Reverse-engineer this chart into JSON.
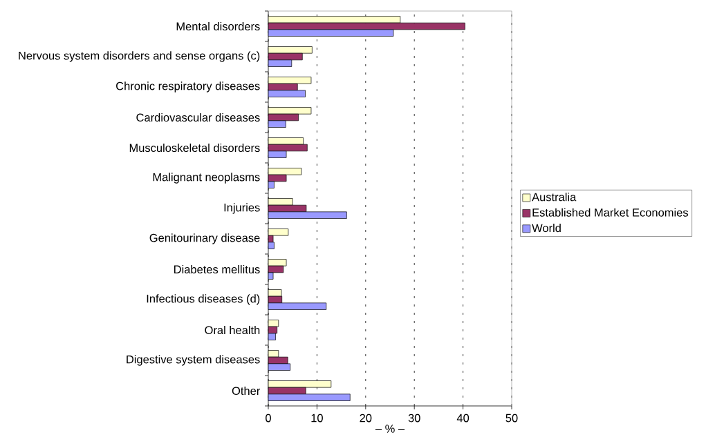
{
  "chart_data": {
    "type": "bar",
    "orientation": "horizontal",
    "xlabel": "– % –",
    "categories": [
      "Mental disorders",
      "Nervous system disorders and sense organs (c)",
      "Chronic respiratory diseases",
      "Cardiovascular diseases",
      "Musculoskeletal disorders",
      "Malignant neoplasms",
      "Injuries",
      "Genitourinary disease",
      "Diabetes mellitus",
      "Infectious diseases (d)",
      "Oral health",
      "Digestive system diseases",
      "Other"
    ],
    "series": [
      {
        "name": "Australia",
        "color": "#ffffcc",
        "values": [
          27.1,
          9.0,
          8.8,
          8.8,
          7.2,
          6.8,
          5.0,
          4.1,
          3.7,
          2.7,
          2.1,
          2.1,
          12.9
        ]
      },
      {
        "name": "Established Market Economies",
        "color": "#993366",
        "values": [
          40.4,
          7.0,
          6.0,
          6.2,
          8.0,
          3.7,
          7.8,
          1.0,
          3.1,
          2.8,
          1.8,
          4.0,
          7.7
        ]
      },
      {
        "name": "World",
        "color": "#9999ff",
        "values": [
          25.7,
          4.8,
          7.6,
          3.6,
          3.7,
          1.2,
          16.1,
          1.2,
          1.0,
          11.9,
          1.5,
          4.5,
          16.8
        ]
      }
    ],
    "xlim": [
      0,
      50
    ],
    "xticks": [
      0,
      10,
      20,
      30,
      40,
      50
    ],
    "grid": "x",
    "legend": "right"
  }
}
